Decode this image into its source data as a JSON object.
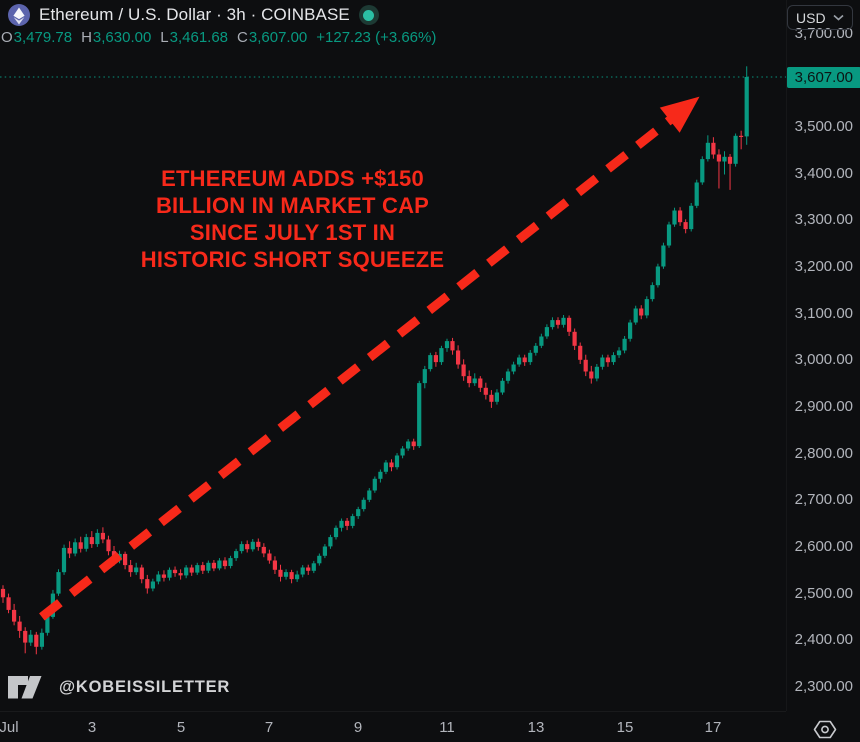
{
  "header": {
    "title": "Ethereum / U.S. Dollar · 3h · COINBASE",
    "ohlc": {
      "o_label": "O",
      "o_value": "3,479.78",
      "h_label": "H",
      "h_value": "3,630.00",
      "l_label": "L",
      "l_value": "3,461.68",
      "c_label": "C",
      "c_value": "3,607.00",
      "change": "+127.23 (+3.66%)"
    }
  },
  "toolbar": {
    "currency": "USD"
  },
  "annotation": {
    "lines": [
      "ETHEREUM ADDS +$150",
      "BILLION IN MARKET CAP",
      "SINCE JULY 1ST IN",
      "HISTORIC SHORT SQUEEZE"
    ],
    "color": "#f7291a"
  },
  "watermark": {
    "handle": "@KOBEISSILETTER"
  },
  "price_axis": {
    "ticks": [
      {
        "label": "3,700.00",
        "value": 3700
      },
      {
        "label": "3,500.00",
        "value": 3500
      },
      {
        "label": "3,400.00",
        "value": 3400
      },
      {
        "label": "3,300.00",
        "value": 3300
      },
      {
        "label": "3,200.00",
        "value": 3200
      },
      {
        "label": "3,100.00",
        "value": 3100
      },
      {
        "label": "3,000.00",
        "value": 3000
      },
      {
        "label": "2,900.00",
        "value": 2900
      },
      {
        "label": "2,800.00",
        "value": 2800
      },
      {
        "label": "2,700.00",
        "value": 2700
      },
      {
        "label": "2,600.00",
        "value": 2600
      },
      {
        "label": "2,500.00",
        "value": 2500
      },
      {
        "label": "2,400.00",
        "value": 2400
      },
      {
        "label": "2,300.00",
        "value": 2300
      }
    ],
    "last_price": {
      "label": "3,607.00",
      "value": 3607
    }
  },
  "time_axis": {
    "labels": [
      {
        "text": "Jul",
        "bar": 1
      },
      {
        "text": "3",
        "bar": 16
      },
      {
        "text": "5",
        "bar": 32
      },
      {
        "text": "7",
        "bar": 48
      },
      {
        "text": "9",
        "bar": 64
      },
      {
        "text": "11",
        "bar": 80
      },
      {
        "text": "13",
        "bar": 96
      },
      {
        "text": "15",
        "bar": 112
      },
      {
        "text": "17",
        "bar": 128
      }
    ]
  },
  "chart_data": {
    "type": "candlestick",
    "title": "Ethereum / U.S. Dollar",
    "exchange": "COINBASE",
    "interval": "3h",
    "currency": "USD",
    "up_color": "#089981",
    "down_color": "#f23645",
    "y_axis": {
      "min": 2300,
      "max": 3700,
      "tick_step": 100
    },
    "x_range": {
      "start": "Jul 1",
      "end": "Jul 17",
      "bars_per_day": 8
    },
    "last_price": 3607,
    "trend_arrow": {
      "from": {
        "bar": 7,
        "price": 2450
      },
      "to": {
        "bar": 125.5,
        "price": 3565
      },
      "color": "#f7291a"
    },
    "candles_ohlc": [
      [
        2510,
        2518,
        2480,
        2492
      ],
      [
        2492,
        2500,
        2458,
        2465
      ],
      [
        2465,
        2478,
        2432,
        2440
      ],
      [
        2440,
        2452,
        2405,
        2420
      ],
      [
        2420,
        2428,
        2372,
        2395
      ],
      [
        2395,
        2422,
        2388,
        2412
      ],
      [
        2412,
        2418,
        2370,
        2386
      ],
      [
        2386,
        2425,
        2380,
        2416
      ],
      [
        2416,
        2455,
        2410,
        2450
      ],
      [
        2450,
        2508,
        2446,
        2500
      ],
      [
        2500,
        2552,
        2495,
        2546
      ],
      [
        2546,
        2605,
        2540,
        2598
      ],
      [
        2598,
        2612,
        2576,
        2586
      ],
      [
        2586,
        2618,
        2580,
        2610
      ],
      [
        2610,
        2622,
        2588,
        2596
      ],
      [
        2596,
        2628,
        2590,
        2621
      ],
      [
        2621,
        2634,
        2598,
        2606
      ],
      [
        2606,
        2638,
        2600,
        2630
      ],
      [
        2630,
        2642,
        2608,
        2616
      ],
      [
        2616,
        2624,
        2582,
        2591
      ],
      [
        2591,
        2602,
        2560,
        2571
      ],
      [
        2571,
        2592,
        2565,
        2585
      ],
      [
        2585,
        2590,
        2552,
        2561
      ],
      [
        2561,
        2572,
        2536,
        2546
      ],
      [
        2546,
        2566,
        2540,
        2556
      ],
      [
        2556,
        2562,
        2522,
        2531
      ],
      [
        2531,
        2540,
        2500,
        2511
      ],
      [
        2511,
        2532,
        2505,
        2526
      ],
      [
        2526,
        2548,
        2520,
        2541
      ],
      [
        2541,
        2550,
        2526,
        2534
      ],
      [
        2534,
        2556,
        2528,
        2551
      ],
      [
        2551,
        2558,
        2536,
        2544
      ],
      [
        2544,
        2552,
        2530,
        2539
      ],
      [
        2539,
        2561,
        2533,
        2556
      ],
      [
        2556,
        2562,
        2538,
        2545
      ],
      [
        2545,
        2566,
        2540,
        2561
      ],
      [
        2561,
        2568,
        2542,
        2549
      ],
      [
        2549,
        2571,
        2544,
        2566
      ],
      [
        2566,
        2572,
        2548,
        2554
      ],
      [
        2554,
        2576,
        2550,
        2571
      ],
      [
        2571,
        2578,
        2552,
        2559
      ],
      [
        2559,
        2581,
        2554,
        2576
      ],
      [
        2576,
        2596,
        2570,
        2591
      ],
      [
        2591,
        2612,
        2586,
        2606
      ],
      [
        2606,
        2614,
        2588,
        2595
      ],
      [
        2595,
        2617,
        2590,
        2611
      ],
      [
        2611,
        2618,
        2592,
        2600
      ],
      [
        2600,
        2608,
        2578,
        2586
      ],
      [
        2586,
        2594,
        2564,
        2571
      ],
      [
        2571,
        2580,
        2542,
        2551
      ],
      [
        2551,
        2562,
        2526,
        2536
      ],
      [
        2536,
        2552,
        2530,
        2546
      ],
      [
        2546,
        2551,
        2522,
        2531
      ],
      [
        2531,
        2549,
        2525,
        2541
      ],
      [
        2541,
        2561,
        2535,
        2556
      ],
      [
        2556,
        2562,
        2540,
        2549
      ],
      [
        2549,
        2570,
        2544,
        2565
      ],
      [
        2565,
        2586,
        2560,
        2581
      ],
      [
        2581,
        2606,
        2576,
        2601
      ],
      [
        2601,
        2626,
        2596,
        2621
      ],
      [
        2621,
        2646,
        2616,
        2641
      ],
      [
        2641,
        2661,
        2633,
        2656
      ],
      [
        2656,
        2662,
        2636,
        2645
      ],
      [
        2645,
        2671,
        2640,
        2666
      ],
      [
        2666,
        2686,
        2660,
        2681
      ],
      [
        2681,
        2706,
        2676,
        2701
      ],
      [
        2701,
        2726,
        2696,
        2721
      ],
      [
        2721,
        2751,
        2716,
        2746
      ],
      [
        2746,
        2766,
        2738,
        2761
      ],
      [
        2761,
        2786,
        2756,
        2781
      ],
      [
        2781,
        2788,
        2762,
        2771
      ],
      [
        2771,
        2801,
        2766,
        2796
      ],
      [
        2796,
        2816,
        2790,
        2811
      ],
      [
        2811,
        2831,
        2806,
        2826
      ],
      [
        2826,
        2832,
        2808,
        2816
      ],
      [
        2816,
        2956,
        2812,
        2951
      ],
      [
        2951,
        2988,
        2940,
        2981
      ],
      [
        2981,
        3016,
        2976,
        3011
      ],
      [
        3011,
        3018,
        2986,
        2996
      ],
      [
        2996,
        3031,
        2990,
        3026
      ],
      [
        3026,
        3046,
        3018,
        3041
      ],
      [
        3041,
        3048,
        3012,
        3021
      ],
      [
        3021,
        3032,
        2982,
        2991
      ],
      [
        2991,
        3002,
        2956,
        2966
      ],
      [
        2966,
        2978,
        2942,
        2951
      ],
      [
        2951,
        2972,
        2945,
        2961
      ],
      [
        2961,
        2966,
        2932,
        2941
      ],
      [
        2941,
        2952,
        2916,
        2926
      ],
      [
        2926,
        2936,
        2898,
        2911
      ],
      [
        2911,
        2938,
        2905,
        2931
      ],
      [
        2931,
        2962,
        2926,
        2956
      ],
      [
        2956,
        2982,
        2950,
        2976
      ],
      [
        2976,
        2997,
        2970,
        2991
      ],
      [
        2991,
        3012,
        2986,
        3006
      ],
      [
        3006,
        3012,
        2988,
        2996
      ],
      [
        2996,
        3022,
        2990,
        3016
      ],
      [
        3016,
        3037,
        3010,
        3031
      ],
      [
        3031,
        3057,
        3026,
        3051
      ],
      [
        3051,
        3077,
        3046,
        3071
      ],
      [
        3071,
        3092,
        3066,
        3086
      ],
      [
        3086,
        3092,
        3068,
        3076
      ],
      [
        3076,
        3097,
        3070,
        3091
      ],
      [
        3091,
        3096,
        3052,
        3061
      ],
      [
        3061,
        3068,
        3022,
        3031
      ],
      [
        3031,
        3038,
        2992,
        3001
      ],
      [
        3001,
        3012,
        2966,
        2976
      ],
      [
        2976,
        2988,
        2950,
        2961
      ],
      [
        2961,
        2992,
        2955,
        2986
      ],
      [
        2986,
        3012,
        2980,
        3006
      ],
      [
        3006,
        3012,
        2986,
        2996
      ],
      [
        2996,
        3017,
        2990,
        3011
      ],
      [
        3011,
        3028,
        3005,
        3021
      ],
      [
        3021,
        3052,
        3015,
        3046
      ],
      [
        3046,
        3087,
        3040,
        3081
      ],
      [
        3081,
        3117,
        3076,
        3111
      ],
      [
        3111,
        3118,
        3088,
        3096
      ],
      [
        3096,
        3137,
        3090,
        3131
      ],
      [
        3131,
        3167,
        3126,
        3161
      ],
      [
        3161,
        3207,
        3156,
        3201
      ],
      [
        3201,
        3252,
        3196,
        3246
      ],
      [
        3246,
        3297,
        3241,
        3291
      ],
      [
        3291,
        3327,
        3286,
        3321
      ],
      [
        3321,
        3328,
        3288,
        3296
      ],
      [
        3296,
        3302,
        3272,
        3281
      ],
      [
        3281,
        3337,
        3276,
        3331
      ],
      [
        3331,
        3387,
        3326,
        3381
      ],
      [
        3381,
        3437,
        3376,
        3431
      ],
      [
        3431,
        3482,
        3426,
        3466
      ],
      [
        3466,
        3478,
        3432,
        3441
      ],
      [
        3441,
        3452,
        3368,
        3426
      ],
      [
        3426,
        3448,
        3398,
        3436
      ],
      [
        3436,
        3442,
        3365,
        3421
      ],
      [
        3421,
        3486,
        3415,
        3481
      ],
      [
        3481,
        3492,
        3452,
        3480
      ],
      [
        3479.78,
        3630,
        3461.68,
        3607
      ]
    ]
  }
}
